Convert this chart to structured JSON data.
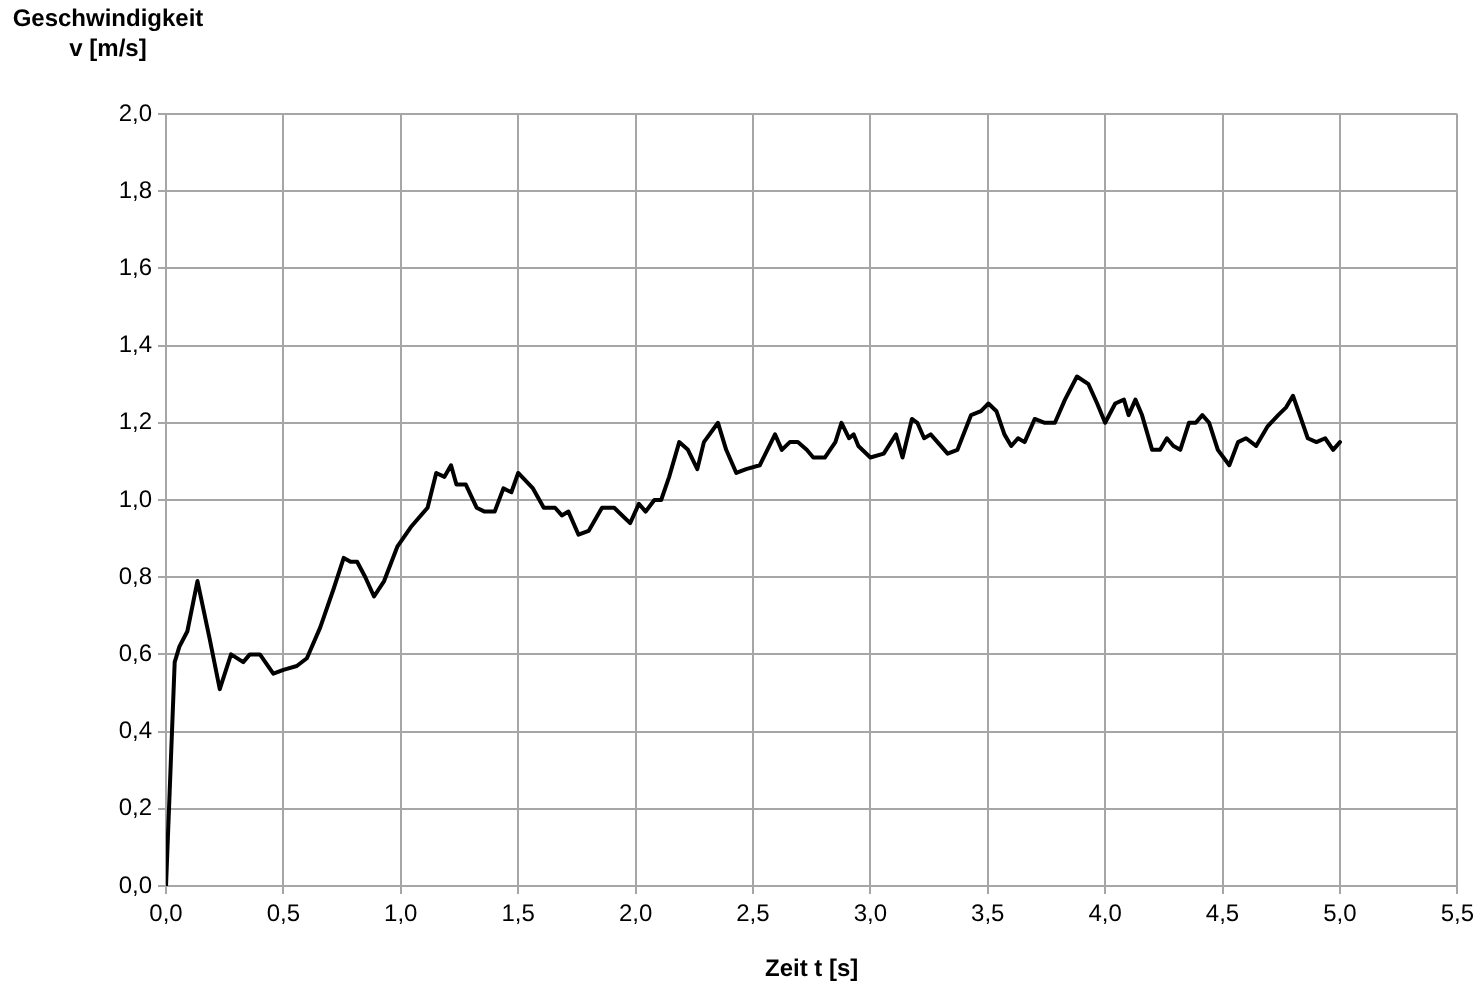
{
  "chart_data": {
    "type": "line",
    "ylabel": "Geschwindigkeit v [m/s]",
    "xlabel": "Zeit t [s]",
    "xlim": [
      0,
      5.5
    ],
    "ylim": [
      0,
      2
    ],
    "xticks": [
      {
        "value": 0,
        "label": "0,0"
      },
      {
        "value": 0.5,
        "label": "0,5"
      },
      {
        "value": 1,
        "label": "1,0"
      },
      {
        "value": 1.5,
        "label": "1,5"
      },
      {
        "value": 2,
        "label": "2,0"
      },
      {
        "value": 2.5,
        "label": "2,5"
      },
      {
        "value": 3,
        "label": "3,0"
      },
      {
        "value": 3.5,
        "label": "3,5"
      },
      {
        "value": 4,
        "label": "4,0"
      },
      {
        "value": 4.5,
        "label": "4,5"
      },
      {
        "value": 5,
        "label": "5,0"
      },
      {
        "value": 5.5,
        "label": "5,5"
      }
    ],
    "yticks": [
      {
        "value": 0,
        "label": "0,0"
      },
      {
        "value": 0.2,
        "label": "0,2"
      },
      {
        "value": 0.4,
        "label": "0,4"
      },
      {
        "value": 0.6,
        "label": "0,6"
      },
      {
        "value": 0.8,
        "label": "0,8"
      },
      {
        "value": 1,
        "label": "1,0"
      },
      {
        "value": 1.2,
        "label": "1,2"
      },
      {
        "value": 1.4,
        "label": "1,4"
      },
      {
        "value": 1.6,
        "label": "1,6"
      },
      {
        "value": 1.8,
        "label": "1,8"
      },
      {
        "value": 2,
        "label": "2,0"
      }
    ],
    "grid": true,
    "legend": false,
    "marker": "none",
    "line_style": "solid",
    "series": [
      {
        "color": "#000000",
        "x": [
          0,
          0.037,
          0.057,
          0.091,
          0.134,
          0.186,
          0.229,
          0.277,
          0.329,
          0.357,
          0.4,
          0.457,
          0.5,
          0.557,
          0.6,
          0.657,
          0.714,
          0.757,
          0.786,
          0.814,
          0.849,
          0.886,
          0.929,
          0.986,
          1.043,
          1.114,
          1.151,
          1.186,
          1.214,
          1.237,
          1.277,
          1.323,
          1.357,
          1.4,
          1.437,
          1.471,
          1.5,
          1.563,
          1.609,
          1.657,
          1.686,
          1.714,
          1.757,
          1.8,
          1.857,
          1.909,
          1.943,
          1.977,
          2.014,
          2.043,
          2.08,
          2.109,
          2.143,
          2.186,
          2.223,
          2.263,
          2.291,
          2.351,
          2.386,
          2.429,
          2.471,
          2.529,
          2.594,
          2.623,
          2.657,
          2.691,
          2.729,
          2.757,
          2.806,
          2.851,
          2.877,
          2.909,
          2.929,
          2.949,
          3.0,
          3.057,
          3.109,
          3.137,
          3.177,
          3.2,
          3.229,
          3.257,
          3.329,
          3.371,
          3.429,
          3.471,
          3.503,
          3.537,
          3.571,
          3.6,
          3.629,
          3.657,
          3.7,
          3.743,
          3.786,
          3.829,
          3.88,
          3.929,
          3.966,
          4.0,
          4.043,
          4.08,
          4.1,
          4.129,
          4.157,
          4.2,
          4.234,
          4.263,
          4.291,
          4.32,
          4.357,
          4.386,
          4.414,
          4.443,
          4.48,
          4.529,
          4.566,
          4.6,
          4.643,
          4.691,
          4.737,
          4.771,
          4.8,
          4.829,
          4.863,
          4.9,
          4.937,
          4.971,
          5.0
        ],
        "values": [
          0,
          0.58,
          0.62,
          0.66,
          0.79,
          0.64,
          0.51,
          0.6,
          0.58,
          0.6,
          0.6,
          0.55,
          0.56,
          0.57,
          0.59,
          0.67,
          0.77,
          0.85,
          0.84,
          0.84,
          0.8,
          0.75,
          0.79,
          0.88,
          0.93,
          0.98,
          1.07,
          1.06,
          1.09,
          1.04,
          1.04,
          0.98,
          0.97,
          0.97,
          1.03,
          1.02,
          1.07,
          1.03,
          0.98,
          0.98,
          0.96,
          0.97,
          0.91,
          0.92,
          0.98,
          0.98,
          0.96,
          0.94,
          0.99,
          0.97,
          1.0,
          1.0,
          1.06,
          1.15,
          1.13,
          1.08,
          1.15,
          1.2,
          1.13,
          1.07,
          1.08,
          1.09,
          1.17,
          1.13,
          1.15,
          1.15,
          1.13,
          1.11,
          1.11,
          1.15,
          1.2,
          1.16,
          1.17,
          1.14,
          1.11,
          1.12,
          1.17,
          1.11,
          1.21,
          1.2,
          1.16,
          1.17,
          1.12,
          1.13,
          1.22,
          1.23,
          1.25,
          1.23,
          1.17,
          1.14,
          1.16,
          1.15,
          1.21,
          1.2,
          1.2,
          1.26,
          1.32,
          1.3,
          1.25,
          1.2,
          1.25,
          1.26,
          1.22,
          1.26,
          1.22,
          1.13,
          1.13,
          1.16,
          1.14,
          1.13,
          1.2,
          1.2,
          1.22,
          1.2,
          1.13,
          1.09,
          1.15,
          1.16,
          1.14,
          1.19,
          1.22,
          1.24,
          1.27,
          1.22,
          1.16,
          1.15,
          1.16,
          1.13,
          1.15
        ]
      }
    ]
  }
}
